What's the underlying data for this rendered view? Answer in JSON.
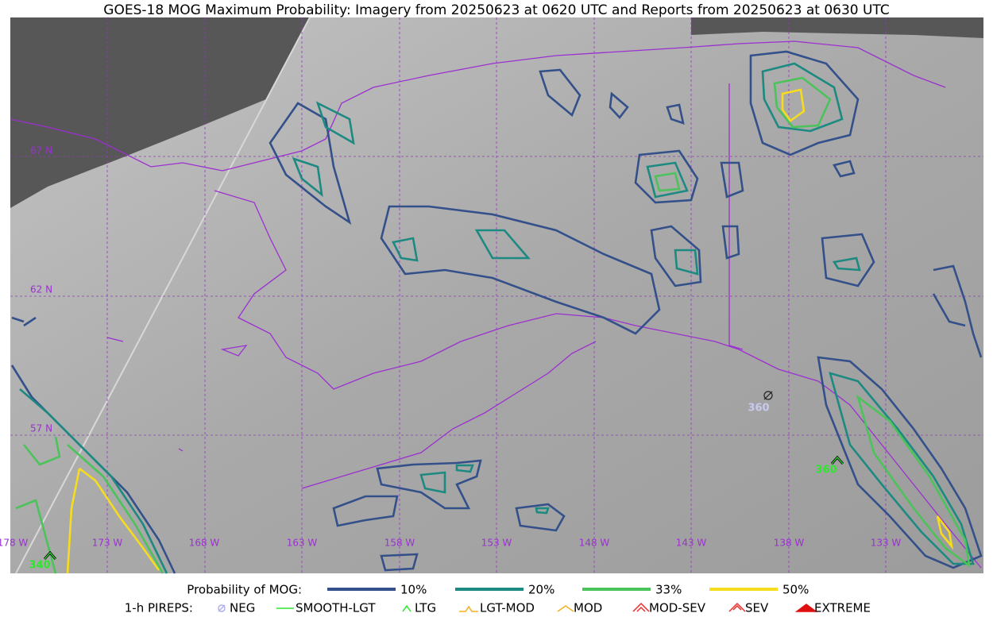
{
  "title": "GOES-18 MOG Maximum Probability: Imagery from 20250623 at 0620 UTC and Reports from 20250623 at 0630 UTC",
  "map": {
    "lat_labels": [
      "67 N",
      "62 N",
      "57 N"
    ],
    "lon_labels": [
      "178 W",
      "173 W",
      "168 W",
      "163 W",
      "158 W",
      "153 W",
      "148 W",
      "143 W",
      "138 W",
      "133 W"
    ],
    "reports": [
      {
        "label": "360",
        "color": "#c8c8f0"
      },
      {
        "label": "360",
        "color": "#2ee62e"
      },
      {
        "label": "340",
        "color": "#2ee62e"
      }
    ]
  },
  "legend": {
    "probability_title": "Probability of MOG:",
    "probability_levels": [
      {
        "label": "10%",
        "color": "#34508a"
      },
      {
        "label": "20%",
        "color": "#1d8a82"
      },
      {
        "label": "33%",
        "color": "#4cc35a"
      },
      {
        "label": "50%",
        "color": "#f5dc1e"
      }
    ],
    "pirep_title": "1-h PIREPS:",
    "pirep_types": [
      {
        "label": "NEG",
        "color": "#b0b0f0"
      },
      {
        "label": "SMOOTH-LGT",
        "color": "#2ee62e"
      },
      {
        "label": "LTG",
        "color": "#2ee62e"
      },
      {
        "label": "LGT-MOD",
        "color": "#f5b020"
      },
      {
        "label": "MOD",
        "color": "#f5b020"
      },
      {
        "label": "MOD-SEV",
        "color": "#e83030"
      },
      {
        "label": "SEV",
        "color": "#e83030"
      },
      {
        "label": "EXTREME",
        "color": "#e01010"
      }
    ]
  }
}
